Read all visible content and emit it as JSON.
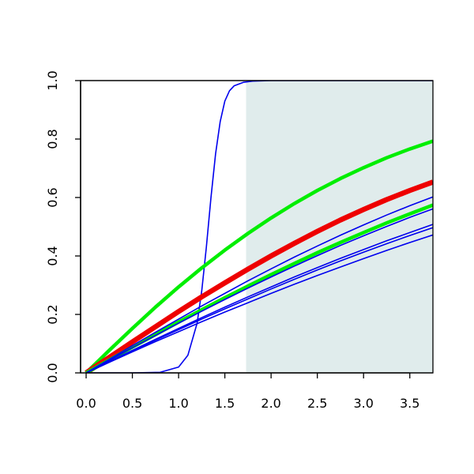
{
  "chart_data": {
    "type": "line",
    "title": "",
    "xlabel": "",
    "ylabel": "",
    "xlim": [
      -0.06,
      3.75
    ],
    "ylim": [
      0,
      1
    ],
    "grid": false,
    "legend": "none",
    "x_ticks": [
      "0.0",
      "0.5",
      "1.0",
      "1.5",
      "2.0",
      "2.5",
      "3.0",
      "3.5"
    ],
    "y_ticks": [
      "0.0",
      "0.2",
      "0.4",
      "0.6",
      "0.8",
      "1.0"
    ],
    "shaded_region": {
      "x_start": 1.73,
      "x_end": 3.75,
      "color": "#e0ecec"
    },
    "series": [
      {
        "color": "#0000ee",
        "width": "thin",
        "x": [
          0,
          0.5,
          0.8,
          1.0,
          1.1,
          1.2,
          1.25,
          1.3,
          1.35,
          1.4,
          1.45,
          1.5,
          1.55,
          1.6,
          1.7,
          1.8,
          2.0,
          2.5,
          3.0,
          3.5,
          3.75
        ],
        "y": [
          0,
          0,
          0.002,
          0.02,
          0.06,
          0.17,
          0.28,
          0.43,
          0.6,
          0.75,
          0.86,
          0.93,
          0.965,
          0.982,
          0.994,
          0.998,
          1.0,
          1.0,
          1.0,
          1.0,
          1.0
        ]
      },
      {
        "color": "#00ee00",
        "width": "thick",
        "x": [
          0,
          0.25,
          0.5,
          0.75,
          1.0,
          1.25,
          1.5,
          1.75,
          2.0,
          2.25,
          2.5,
          2.75,
          3.0,
          3.25,
          3.5,
          3.75
        ],
        "y": [
          0,
          0.077,
          0.152,
          0.225,
          0.294,
          0.359,
          0.42,
          0.477,
          0.53,
          0.579,
          0.624,
          0.665,
          0.702,
          0.736,
          0.766,
          0.793
        ]
      },
      {
        "color": "#ee0000",
        "width": "thickest",
        "x": [
          0,
          0.25,
          0.5,
          0.75,
          1.0,
          1.25,
          1.5,
          1.75,
          2.0,
          2.25,
          2.5,
          2.75,
          3.0,
          3.25,
          3.5,
          3.75
        ],
        "y": [
          0,
          0.053,
          0.106,
          0.158,
          0.21,
          0.26,
          0.308,
          0.355,
          0.4,
          0.443,
          0.484,
          0.523,
          0.559,
          0.593,
          0.624,
          0.653
        ]
      },
      {
        "color": "#00ee00",
        "width": "thick",
        "x": [
          0,
          0.25,
          0.5,
          0.75,
          1.0,
          1.25,
          1.5,
          1.75,
          2.0,
          2.25,
          2.5,
          2.75,
          3.0,
          3.25,
          3.5,
          3.75
        ],
        "y": [
          0,
          0.044,
          0.088,
          0.131,
          0.174,
          0.216,
          0.257,
          0.297,
          0.336,
          0.374,
          0.411,
          0.446,
          0.48,
          0.513,
          0.544,
          0.574
        ]
      },
      {
        "color": "#0000ee",
        "width": "thin",
        "x": [
          0,
          0.25,
          0.5,
          0.75,
          1.0,
          1.25,
          1.5,
          1.75,
          2.0,
          2.25,
          2.5,
          2.75,
          3.0,
          3.25,
          3.5,
          3.75
        ],
        "y": [
          0,
          0.046,
          0.093,
          0.139,
          0.184,
          0.229,
          0.272,
          0.315,
          0.356,
          0.396,
          0.434,
          0.471,
          0.506,
          0.54,
          0.572,
          0.602
        ]
      },
      {
        "color": "#0000ee",
        "width": "thin",
        "x": [
          0,
          0.25,
          0.5,
          0.75,
          1.0,
          1.25,
          1.5,
          1.75,
          2.0,
          2.25,
          2.5,
          2.75,
          3.0,
          3.25,
          3.5,
          3.75
        ],
        "y": [
          0,
          0.043,
          0.086,
          0.128,
          0.17,
          0.211,
          0.251,
          0.29,
          0.328,
          0.365,
          0.401,
          0.436,
          0.469,
          0.501,
          0.532,
          0.561
        ]
      },
      {
        "color": "#0000ee",
        "width": "thin",
        "x": [
          0,
          0.25,
          0.5,
          0.75,
          1.0,
          1.25,
          1.5,
          1.75,
          2.0,
          2.25,
          2.5,
          2.75,
          3.0,
          3.25,
          3.5,
          3.75
        ],
        "y": [
          0,
          0.039,
          0.077,
          0.115,
          0.152,
          0.189,
          0.225,
          0.26,
          0.294,
          0.328,
          0.36,
          0.392,
          0.422,
          0.452,
          0.48,
          0.508
        ]
      },
      {
        "color": "#0000ee",
        "width": "thin",
        "x": [
          0,
          0.25,
          0.5,
          0.75,
          1.0,
          1.25,
          1.5,
          1.75,
          2.0,
          2.25,
          2.5,
          2.75,
          3.0,
          3.25,
          3.5,
          3.75
        ],
        "y": [
          0,
          0.038,
          0.075,
          0.112,
          0.148,
          0.184,
          0.219,
          0.253,
          0.287,
          0.32,
          0.352,
          0.383,
          0.413,
          0.442,
          0.47,
          0.497
        ]
      },
      {
        "color": "#0000ee",
        "width": "thin",
        "x": [
          0,
          0.25,
          0.5,
          0.75,
          1.0,
          1.25,
          1.5,
          1.75,
          2.0,
          2.25,
          2.5,
          2.75,
          3.0,
          3.25,
          3.5,
          3.75
        ],
        "y": [
          0,
          0.036,
          0.072,
          0.107,
          0.141,
          0.175,
          0.208,
          0.24,
          0.272,
          0.303,
          0.333,
          0.362,
          0.391,
          0.419,
          0.446,
          0.472
        ]
      }
    ]
  }
}
